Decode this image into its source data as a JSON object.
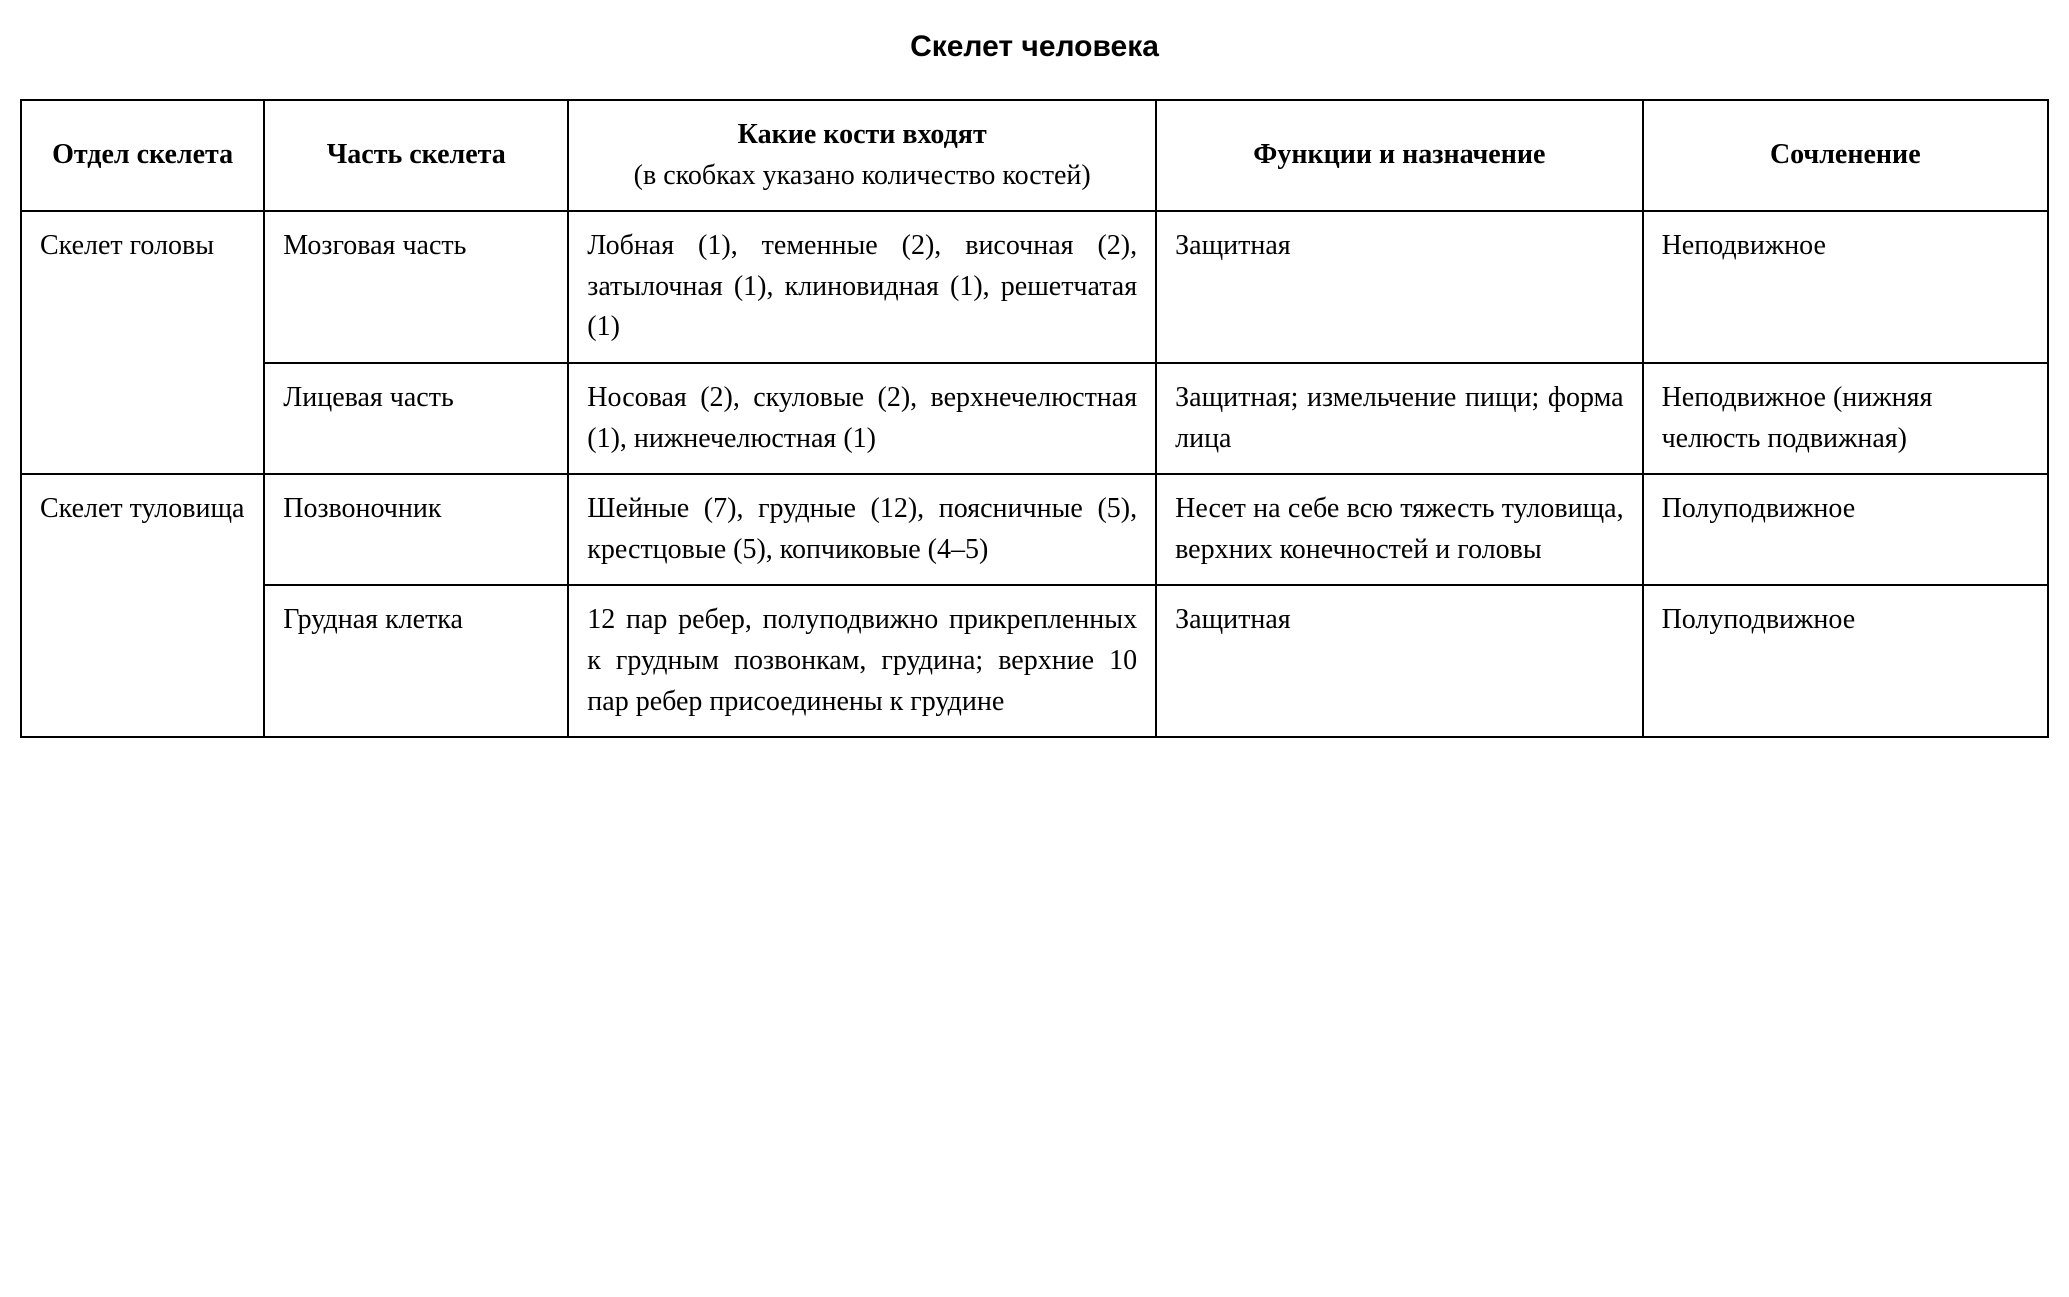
{
  "title": "Скелет человека",
  "table": {
    "columns": [
      {
        "header": "Отдел скелета",
        "subheader": null
      },
      {
        "header": "Часть скелета",
        "subheader": null
      },
      {
        "header": "Какие кости входят",
        "subheader": "(в скобках указано количество костей)"
      },
      {
        "header": "Функции и назначение",
        "subheader": null
      },
      {
        "header": "Сочленение",
        "subheader": null
      }
    ],
    "rows": [
      {
        "section": "Скелет головы",
        "section_rowspan": 2,
        "part": "Мозговая часть",
        "bones": "Лобная (1), теменные (2), височная (2), затылочная (1), клиновидная (1), решетчатая (1)",
        "function": "Защитная",
        "joint": "Неподвижное"
      },
      {
        "section": null,
        "part": "Лицевая часть",
        "bones": "Носовая (2), скуловые (2), верхнечелюстная (1), ниж­нечелюстная (1)",
        "function": "Защитная; измельче­ние пищи; форма ли­ца",
        "joint": "Неподвижное (нижняя челюсть подвижная)"
      },
      {
        "section": "Скелет туловища",
        "section_rowspan": 2,
        "part": "Позвоночник",
        "bones": "Шейные (7), грудные (12), поясничные (5), крестцо­вые (5), копчиковые (4–5)",
        "function": "Несет на себе всю тя­жесть туловища, вер­хних конечностей и головы",
        "joint": "Полуподвижное"
      },
      {
        "section": null,
        "part": "Грудная клетка",
        "bones": "12 пар ребер, полуподвиж­но прикрепленных к груд­ным позвонкам, грудина; верхние 10 пар ребер при­соединены к грудине",
        "function": "Защитная",
        "joint": "Полуподвижное"
      }
    ],
    "border_color": "#000000",
    "background_color": "#ffffff",
    "text_color": "#000000",
    "title_fontsize": 30,
    "cell_fontsize": 28,
    "font_family_title": "Arial, sans-serif",
    "font_family_body": "Times New Roman, serif",
    "column_widths_pct": [
      12,
      15,
      29,
      24,
      20
    ]
  }
}
